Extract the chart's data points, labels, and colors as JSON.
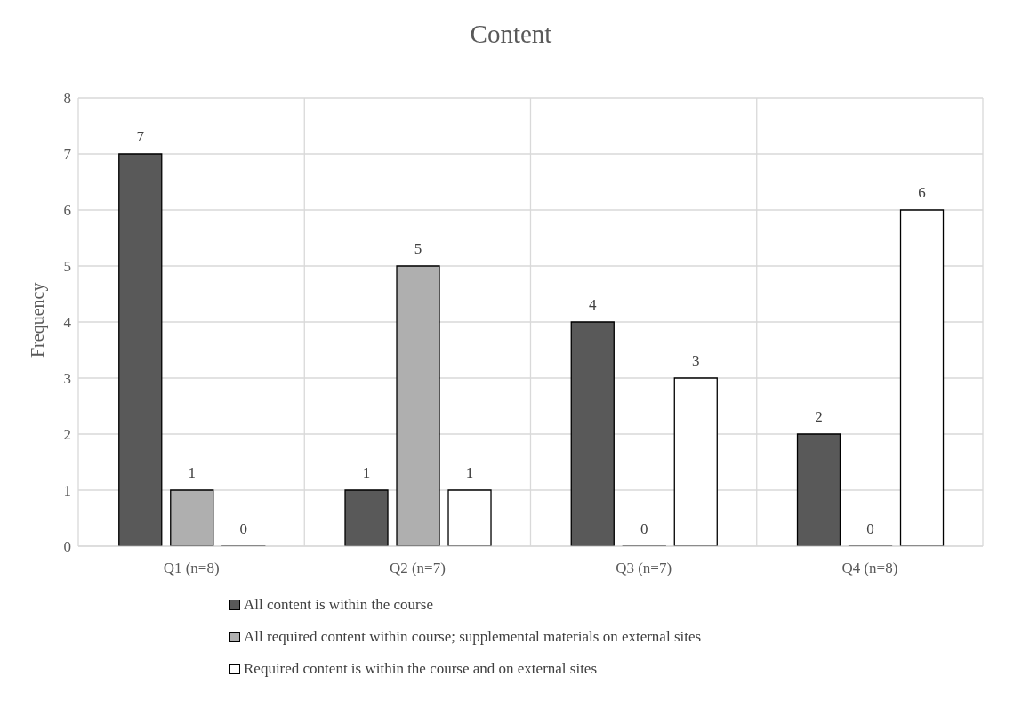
{
  "chart_data": {
    "type": "bar",
    "title": "Content",
    "ylabel": "Frequency",
    "categories": [
      "Q1 (n=8)",
      "Q2 (n=7)",
      "Q3 (n=7)",
      "Q4 (n=8)"
    ],
    "series": [
      {
        "name": "All content is within the course",
        "color": "#595959",
        "values": [
          7,
          1,
          4,
          2
        ]
      },
      {
        "name": "All required content within course; supplemental materials on external sites",
        "color": "#afafaf",
        "values": [
          1,
          5,
          0,
          0
        ]
      },
      {
        "name": "Required content is within the course and on external sites",
        "color": "#ffffff",
        "values": [
          0,
          1,
          3,
          6
        ]
      }
    ],
    "ylim": [
      0,
      8
    ],
    "yticks": [
      0,
      1,
      2,
      3,
      4,
      5,
      6,
      7,
      8
    ],
    "grid": true,
    "legend": "bottom",
    "data_labels": true
  }
}
